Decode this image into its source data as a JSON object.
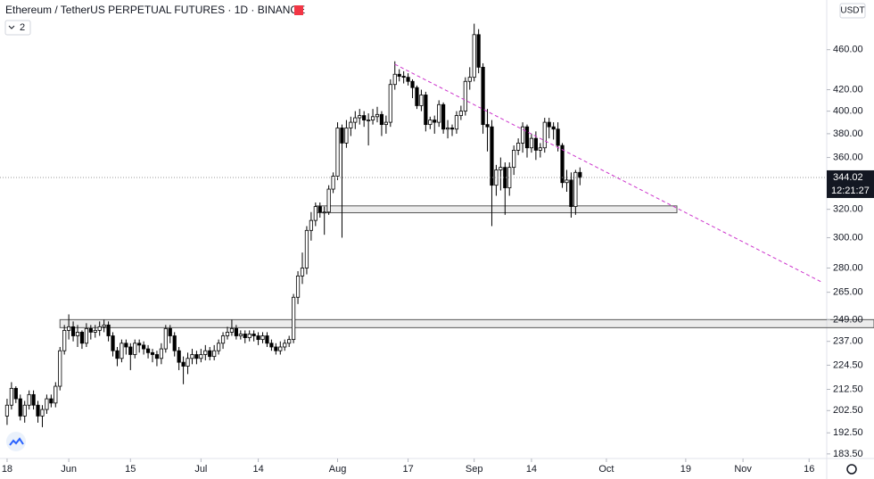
{
  "chart_data": {
    "type": "candlestick",
    "title": "Ethereum / TetherUS PERPETUAL FUTURES · 1D · BINANCE",
    "indicator_count": "2",
    "currency": "USDT",
    "countdown": "12:21:27",
    "last_price": 344.02,
    "log_scale": true,
    "grid": false,
    "up_color": "#ffffff",
    "down_color": "#000000",
    "x": [
      "05-18",
      "05-19",
      "05-20",
      "05-21",
      "05-22",
      "05-23",
      "05-24",
      "05-25",
      "05-26",
      "05-27",
      "05-28",
      "05-29",
      "05-30",
      "05-31",
      "06-01",
      "06-02",
      "06-03",
      "06-04",
      "06-05",
      "06-06",
      "06-07",
      "06-08",
      "06-09",
      "06-10",
      "06-11",
      "06-12",
      "06-13",
      "06-14",
      "06-15",
      "06-16",
      "06-17",
      "06-18",
      "06-19",
      "06-20",
      "06-21",
      "06-22",
      "06-23",
      "06-24",
      "06-25",
      "06-26",
      "06-27",
      "06-28",
      "06-29",
      "06-30",
      "07-01",
      "07-02",
      "07-03",
      "07-04",
      "07-05",
      "07-06",
      "07-07",
      "07-08",
      "07-09",
      "07-10",
      "07-11",
      "07-12",
      "07-13",
      "07-14",
      "07-15",
      "07-16",
      "07-17",
      "07-18",
      "07-19",
      "07-20",
      "07-21",
      "07-22",
      "07-23",
      "07-24",
      "07-25",
      "07-26",
      "07-27",
      "07-28",
      "07-29",
      "07-30",
      "07-31",
      "08-01",
      "08-02",
      "08-03",
      "08-04",
      "08-05",
      "08-06",
      "08-07",
      "08-08",
      "08-09",
      "08-10",
      "08-11",
      "08-12",
      "08-13",
      "08-14",
      "08-15",
      "08-16",
      "08-17",
      "08-18",
      "08-19",
      "08-20",
      "08-21",
      "08-22",
      "08-23",
      "08-24",
      "08-25",
      "08-26",
      "08-27",
      "08-28",
      "08-29",
      "08-30",
      "08-31",
      "09-01",
      "09-02",
      "09-03",
      "09-04",
      "09-05",
      "09-06",
      "09-07",
      "09-08",
      "09-09",
      "09-10",
      "09-11",
      "09-12",
      "09-13",
      "09-14",
      "09-15",
      "09-16",
      "09-17",
      "09-18",
      "09-19",
      "09-20",
      "09-21",
      "09-22",
      "09-23",
      "09-24",
      "09-25"
    ],
    "open": [
      200,
      205,
      213,
      208,
      200,
      205,
      210,
      205,
      200,
      203,
      208,
      206,
      214,
      232,
      243,
      245,
      240,
      242,
      236,
      244,
      242,
      243,
      245,
      246,
      240,
      232,
      228,
      236,
      234,
      230,
      236,
      235,
      233,
      231,
      230,
      228,
      233,
      244,
      240,
      232,
      226,
      224,
      228,
      230,
      228,
      230,
      232,
      229,
      232,
      236,
      240,
      242,
      244,
      240,
      241,
      239,
      241,
      240,
      238,
      240,
      236,
      234,
      232,
      234,
      236,
      238,
      262,
      275,
      280,
      305,
      312,
      322,
      318,
      318,
      335,
      345,
      385,
      372,
      385,
      390,
      394,
      396,
      392,
      392,
      395,
      397,
      388,
      390,
      425,
      435,
      433,
      432,
      428,
      422,
      405,
      415,
      388,
      392,
      390,
      406,
      384,
      385,
      384,
      396,
      400,
      428,
      432,
      476,
      442,
      388,
      386,
      338,
      350,
      352,
      336,
      352,
      366,
      372,
      386,
      368,
      376,
      366,
      368,
      390,
      386,
      384,
      370,
      340,
      342,
      322,
      348
    ],
    "high": [
      208,
      216,
      214,
      210,
      207,
      212,
      212,
      207,
      205,
      210,
      210,
      216,
      234,
      246,
      252,
      248,
      246,
      243,
      247,
      246,
      246,
      248,
      249,
      248,
      242,
      234,
      238,
      238,
      236,
      238,
      238,
      237,
      235,
      233,
      232,
      236,
      246,
      246,
      242,
      234,
      229,
      231,
      233,
      232,
      233,
      235,
      234,
      235,
      238,
      242,
      245,
      249,
      246,
      243,
      243,
      243,
      243,
      242,
      242,
      242,
      238,
      236,
      237,
      238,
      240,
      264,
      278,
      290,
      308,
      318,
      325,
      325,
      322,
      338,
      348,
      390,
      388,
      392,
      395,
      400,
      402,
      400,
      398,
      402,
      404,
      400,
      396,
      430,
      448,
      440,
      438,
      436,
      430,
      424,
      420,
      418,
      395,
      396,
      410,
      408,
      392,
      388,
      400,
      405,
      432,
      442,
      488,
      482,
      446,
      402,
      392,
      354,
      360,
      356,
      356,
      370,
      376,
      390,
      388,
      380,
      382,
      372,
      394,
      394,
      390,
      390,
      372,
      350,
      348,
      350,
      352
    ],
    "low": [
      196,
      203,
      206,
      198,
      197,
      203,
      203,
      197,
      195,
      201,
      204,
      204,
      212,
      230,
      238,
      237,
      234,
      233,
      234,
      238,
      239,
      240,
      242,
      237,
      229,
      224,
      226,
      230,
      222,
      228,
      231,
      230,
      228,
      226,
      224,
      225,
      231,
      236,
      229,
      222,
      215,
      220,
      225,
      225,
      226,
      227,
      227,
      227,
      230,
      233,
      238,
      240,
      238,
      238,
      236,
      237,
      237,
      235,
      236,
      234,
      232,
      230,
      230,
      232,
      234,
      236,
      258,
      270,
      276,
      298,
      308,
      314,
      302,
      316,
      332,
      342,
      300,
      368,
      378,
      384,
      388,
      386,
      370,
      388,
      390,
      378,
      380,
      386,
      420,
      428,
      426,
      424,
      412,
      402,
      400,
      382,
      384,
      380,
      386,
      380,
      376,
      378,
      380,
      392,
      396,
      420,
      428,
      436,
      380,
      365,
      308,
      330,
      334,
      316,
      330,
      346,
      362,
      364,
      360,
      364,
      358,
      360,
      364,
      376,
      375,
      365,
      336,
      333,
      314,
      316,
      338
    ],
    "close": [
      205,
      213,
      208,
      200,
      205,
      210,
      205,
      200,
      203,
      208,
      206,
      214,
      232,
      243,
      245,
      240,
      242,
      236,
      244,
      242,
      243,
      245,
      246,
      240,
      232,
      228,
      236,
      234,
      230,
      236,
      235,
      233,
      231,
      230,
      228,
      233,
      244,
      240,
      232,
      226,
      224,
      228,
      230,
      228,
      230,
      232,
      229,
      232,
      236,
      240,
      242,
      244,
      240,
      241,
      239,
      241,
      240,
      238,
      240,
      236,
      234,
      232,
      234,
      236,
      238,
      262,
      275,
      280,
      305,
      312,
      322,
      318,
      318,
      335,
      345,
      385,
      372,
      385,
      390,
      394,
      396,
      392,
      392,
      395,
      397,
      388,
      390,
      425,
      435,
      433,
      432,
      428,
      422,
      405,
      415,
      388,
      392,
      390,
      406,
      384,
      385,
      384,
      396,
      400,
      428,
      432,
      476,
      442,
      388,
      386,
      338,
      350,
      352,
      336,
      352,
      366,
      372,
      386,
      368,
      376,
      366,
      368,
      390,
      386,
      384,
      370,
      340,
      342,
      322,
      348,
      344
    ],
    "xlim": [
      "05-17",
      "11-20"
    ],
    "ylim": [
      181.6,
      515
    ],
    "xticks": [
      {
        "value": "05-18",
        "label": "18"
      },
      {
        "value": "06-01",
        "label": "Jun"
      },
      {
        "value": "06-15",
        "label": "15"
      },
      {
        "value": "07-01",
        "label": "Jul"
      },
      {
        "value": "07-14",
        "label": "14"
      },
      {
        "value": "08-01",
        "label": "Aug"
      },
      {
        "value": "08-17",
        "label": "17"
      },
      {
        "value": "09-01",
        "label": "Sep"
      },
      {
        "value": "09-14",
        "label": "14"
      },
      {
        "value": "10-01",
        "label": "Oct"
      },
      {
        "value": "10-19",
        "label": "19"
      },
      {
        "value": "11-01",
        "label": "Nov"
      },
      {
        "value": "11-16",
        "label": "16"
      }
    ],
    "yticks": [
      {
        "value": 183.5,
        "label": "183.50"
      },
      {
        "value": 192.5,
        "label": "192.50"
      },
      {
        "value": 202.5,
        "label": "202.50"
      },
      {
        "value": 212.5,
        "label": "212.50"
      },
      {
        "value": 224.5,
        "label": "224.50"
      },
      {
        "value": 237,
        "label": "237.00"
      },
      {
        "value": 249,
        "label": "249.00"
      },
      {
        "value": 265,
        "label": "265.00"
      },
      {
        "value": 280,
        "label": "280.00"
      },
      {
        "value": 300,
        "label": "300.00"
      },
      {
        "value": 320,
        "label": "320.00"
      },
      {
        "value": 360,
        "label": "360.00"
      },
      {
        "value": 380,
        "label": "380.00"
      },
      {
        "value": 400,
        "label": "400.00"
      },
      {
        "value": 420,
        "label": "420.00"
      },
      {
        "value": 460,
        "label": "460.00"
      }
    ],
    "zones": [
      {
        "from": "05-30",
        "low": 244.5,
        "high": 249
      },
      {
        "from": "07-27",
        "to": "10-17",
        "low": 317.5,
        "high": 322.5
      }
    ],
    "trendline": {
      "from": {
        "x": "08-14",
        "y": 445
      },
      "to": {
        "x": "11-19",
        "y": 271
      },
      "color": "#cc33cc"
    }
  }
}
